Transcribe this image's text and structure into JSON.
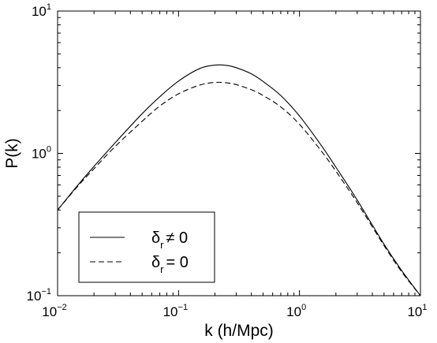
{
  "chart_data": {
    "type": "line",
    "xlabel": "k (h/Mpc)",
    "ylabel": "P(k)",
    "x_scale": "log",
    "y_scale": "log",
    "xlim": [
      0.01,
      10
    ],
    "ylim": [
      0.1,
      10
    ],
    "grid": false,
    "legend_position": "bottom-left",
    "x_ticks": [
      {
        "base": "10",
        "exp": "−2",
        "value": 0.01
      },
      {
        "base": "10",
        "exp": "−1",
        "value": 0.1
      },
      {
        "base": "10",
        "exp": "0",
        "value": 1
      },
      {
        "base": "10",
        "exp": "1",
        "value": 10
      }
    ],
    "y_ticks": [
      {
        "base": "10",
        "exp": "−1",
        "value": 0.1
      },
      {
        "base": "10",
        "exp": "0",
        "value": 1
      },
      {
        "base": "10",
        "exp": "1",
        "value": 10
      }
    ],
    "series": [
      {
        "name": "δr ≠ 0",
        "legend_symbol": "δ",
        "legend_sub": "r",
        "legend_rel": "≠ 0",
        "style": "solid",
        "color": "#000000",
        "x": [
          0.01,
          0.015,
          0.02,
          0.03,
          0.05,
          0.07,
          0.1,
          0.15,
          0.2,
          0.25,
          0.3,
          0.4,
          0.5,
          0.7,
          1.0,
          1.5,
          2.0,
          3.0,
          5.0,
          7.0,
          10.0
        ],
        "y": [
          0.4,
          0.61,
          0.81,
          1.19,
          1.9,
          2.5,
          3.22,
          3.95,
          4.17,
          4.15,
          4.0,
          3.62,
          3.2,
          2.55,
          1.83,
          1.15,
          0.8,
          0.47,
          0.23,
          0.15,
          0.1
        ]
      },
      {
        "name": "δr = 0",
        "legend_symbol": "δ",
        "legend_sub": "r",
        "legend_rel": "= 0",
        "style": "dashed",
        "color": "#000000",
        "x": [
          0.01,
          0.015,
          0.02,
          0.03,
          0.05,
          0.07,
          0.1,
          0.15,
          0.2,
          0.25,
          0.3,
          0.4,
          0.5,
          0.7,
          1.0,
          1.5,
          2.0,
          3.0,
          5.0,
          7.0,
          10.0
        ],
        "y": [
          0.4,
          0.6,
          0.78,
          1.12,
          1.68,
          2.15,
          2.62,
          3.02,
          3.15,
          3.13,
          3.04,
          2.8,
          2.55,
          2.12,
          1.6,
          1.05,
          0.75,
          0.45,
          0.225,
          0.147,
          0.1
        ]
      }
    ]
  }
}
